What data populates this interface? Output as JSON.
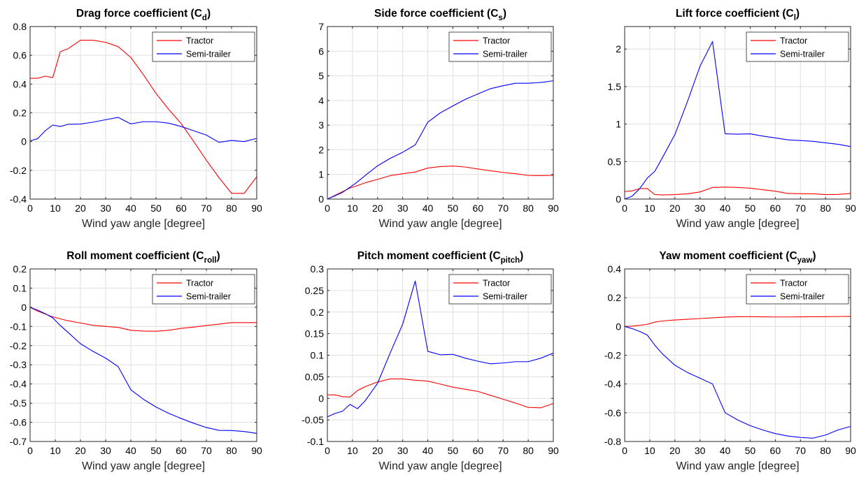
{
  "chart_data": [
    {
      "type": "line",
      "title": "Drag force coefficient (C",
      "title_sub": "d",
      "title_close": ")",
      "xlabel": "Wind yaw angle [degree]",
      "ylabel": "",
      "xlim": [
        0,
        90
      ],
      "ylim": [
        -0.4,
        0.8
      ],
      "xticks": [
        0,
        10,
        20,
        30,
        40,
        50,
        60,
        70,
        80,
        90
      ],
      "yticks": [
        -0.4,
        -0.2,
        0,
        0.2,
        0.4,
        0.6,
        0.8
      ],
      "ytick_labels": [
        "-0.4",
        "-0.2",
        "0",
        "0.2",
        "0.4",
        "0.6",
        "0.8"
      ],
      "grid": true,
      "legend": "top-right",
      "series": [
        {
          "name": "Tractor",
          "color": "#ff0000",
          "x": [
            0,
            3,
            6,
            9,
            12,
            15,
            20,
            25,
            30,
            35,
            40,
            45,
            50,
            55,
            60,
            65,
            70,
            75,
            80,
            85,
            90
          ],
          "y": [
            0.44,
            0.44,
            0.455,
            0.445,
            0.625,
            0.645,
            0.705,
            0.705,
            0.69,
            0.66,
            0.585,
            0.465,
            0.335,
            0.225,
            0.125,
            0.0,
            -0.13,
            -0.25,
            -0.36,
            -0.36,
            -0.245
          ]
        },
        {
          "name": "Semi-trailer",
          "color": "#0000ff",
          "x": [
            0,
            3,
            6,
            9,
            12,
            15,
            20,
            25,
            30,
            35,
            40,
            45,
            50,
            55,
            60,
            65,
            70,
            75,
            80,
            85,
            90
          ],
          "y": [
            0.005,
            0.02,
            0.075,
            0.115,
            0.105,
            0.12,
            0.122,
            0.135,
            0.152,
            0.168,
            0.123,
            0.138,
            0.138,
            0.128,
            0.105,
            0.075,
            0.045,
            -0.005,
            0.008,
            0.0,
            0.022
          ]
        }
      ]
    },
    {
      "type": "line",
      "title": "Side force coefficient (C",
      "title_sub": "s",
      "title_close": ")",
      "xlabel": "Wind yaw angle [degree]",
      "ylabel": "",
      "xlim": [
        0,
        90
      ],
      "ylim": [
        0,
        7
      ],
      "xticks": [
        0,
        10,
        20,
        30,
        40,
        50,
        60,
        70,
        80,
        90
      ],
      "yticks": [
        0,
        1,
        2,
        3,
        4,
        5,
        6,
        7
      ],
      "ytick_labels": [
        "0",
        "1",
        "2",
        "3",
        "4",
        "5",
        "6",
        "7"
      ],
      "grid": true,
      "legend": "top-right",
      "series": [
        {
          "name": "Tractor",
          "color": "#ff0000",
          "x": [
            0,
            3,
            6,
            9,
            12,
            15,
            20,
            25,
            30,
            35,
            40,
            45,
            50,
            55,
            60,
            65,
            70,
            75,
            80,
            85,
            90
          ],
          "y": [
            0.0,
            0.15,
            0.3,
            0.45,
            0.55,
            0.66,
            0.8,
            0.95,
            1.03,
            1.1,
            1.26,
            1.32,
            1.34,
            1.3,
            1.22,
            1.15,
            1.08,
            1.03,
            0.96,
            0.95,
            0.96
          ]
        },
        {
          "name": "Semi-trailer",
          "color": "#0000ff",
          "x": [
            0,
            3,
            6,
            9,
            12,
            15,
            20,
            25,
            30,
            35,
            40,
            45,
            50,
            55,
            60,
            65,
            70,
            75,
            80,
            85,
            90
          ],
          "y": [
            0.0,
            0.13,
            0.27,
            0.48,
            0.7,
            0.95,
            1.35,
            1.65,
            1.9,
            2.2,
            3.12,
            3.5,
            3.78,
            4.05,
            4.27,
            4.48,
            4.6,
            4.7,
            4.7,
            4.73,
            4.8
          ]
        }
      ]
    },
    {
      "type": "line",
      "title": "Lift force coefficient (C",
      "title_sub": "l",
      "title_close": ")",
      "xlabel": "Wind yaw angle [degree]",
      "ylabel": "",
      "xlim": [
        0,
        90
      ],
      "ylim": [
        0,
        2.3
      ],
      "xticks": [
        0,
        10,
        20,
        30,
        40,
        50,
        60,
        70,
        80,
        90
      ],
      "yticks": [
        0,
        0.5,
        1,
        1.5,
        2
      ],
      "ytick_labels": [
        "0",
        "0.5",
        "1",
        "1.5",
        "2"
      ],
      "grid": true,
      "legend": "top-right",
      "series": [
        {
          "name": "Tractor",
          "color": "#ff0000",
          "x": [
            0,
            3,
            6,
            9,
            12,
            15,
            20,
            25,
            30,
            35,
            40,
            45,
            50,
            55,
            60,
            65,
            70,
            75,
            80,
            85,
            90
          ],
          "y": [
            0.1,
            0.11,
            0.14,
            0.14,
            0.06,
            0.055,
            0.06,
            0.07,
            0.095,
            0.155,
            0.16,
            0.155,
            0.145,
            0.125,
            0.105,
            0.075,
            0.072,
            0.07,
            0.06,
            0.062,
            0.075
          ]
        },
        {
          "name": "Semi-trailer",
          "color": "#0000ff",
          "x": [
            0,
            3,
            6,
            9,
            12,
            15,
            20,
            25,
            30,
            35,
            40,
            45,
            50,
            55,
            60,
            65,
            70,
            75,
            80,
            85,
            90
          ],
          "y": [
            0.0,
            0.04,
            0.14,
            0.28,
            0.37,
            0.55,
            0.86,
            1.3,
            1.77,
            2.1,
            0.87,
            0.865,
            0.87,
            0.84,
            0.815,
            0.79,
            0.78,
            0.77,
            0.75,
            0.73,
            0.7
          ]
        }
      ]
    },
    {
      "type": "line",
      "title": "Roll moment coefficient (C",
      "title_sub": "roll",
      "title_close": ")",
      "xlabel": "Wind yaw angle [degree]",
      "ylabel": "",
      "xlim": [
        0,
        90
      ],
      "ylim": [
        -0.7,
        0.2
      ],
      "xticks": [
        0,
        10,
        20,
        30,
        40,
        50,
        60,
        70,
        80,
        90
      ],
      "yticks": [
        -0.7,
        -0.6,
        -0.5,
        -0.4,
        -0.3,
        -0.2,
        -0.1,
        0,
        0.1,
        0.2
      ],
      "ytick_labels": [
        "-0.7",
        "-0.6",
        "-0.5",
        "-0.4",
        "-0.3",
        "-0.2",
        "-0.1",
        "0",
        "0.1",
        "0.2"
      ],
      "grid": true,
      "legend": "top-right",
      "series": [
        {
          "name": "Tractor",
          "color": "#ff0000",
          "x": [
            0,
            3,
            6,
            9,
            12,
            15,
            20,
            25,
            30,
            35,
            40,
            45,
            50,
            55,
            60,
            65,
            70,
            75,
            80,
            85,
            90
          ],
          "y": [
            0.0,
            -0.02,
            -0.035,
            -0.05,
            -0.06,
            -0.07,
            -0.082,
            -0.094,
            -0.1,
            -0.105,
            -0.12,
            -0.124,
            -0.125,
            -0.12,
            -0.11,
            -0.103,
            -0.095,
            -0.088,
            -0.08,
            -0.08,
            -0.08
          ]
        },
        {
          "name": "Semi-trailer",
          "color": "#0000ff",
          "x": [
            0,
            3,
            6,
            9,
            12,
            15,
            20,
            25,
            30,
            35,
            40,
            45,
            50,
            55,
            60,
            65,
            70,
            75,
            80,
            85,
            90
          ],
          "y": [
            0.0,
            -0.015,
            -0.033,
            -0.055,
            -0.095,
            -0.13,
            -0.19,
            -0.23,
            -0.265,
            -0.31,
            -0.43,
            -0.48,
            -0.52,
            -0.553,
            -0.58,
            -0.605,
            -0.627,
            -0.642,
            -0.643,
            -0.648,
            -0.658
          ]
        }
      ]
    },
    {
      "type": "line",
      "title": "Pitch moment coefficient (C",
      "title_sub": "pitch",
      "title_close": ")",
      "xlabel": "Wind yaw angle [degree]",
      "ylabel": "",
      "xlim": [
        0,
        90
      ],
      "ylim": [
        -0.1,
        0.3
      ],
      "xticks": [
        0,
        10,
        20,
        30,
        40,
        50,
        60,
        70,
        80,
        90
      ],
      "yticks": [
        -0.1,
        -0.05,
        0,
        0.05,
        0.1,
        0.15,
        0.2,
        0.25,
        0.3
      ],
      "ytick_labels": [
        "-0.1",
        "-0.05",
        "0",
        "0.05",
        "0.1",
        "0.15",
        "0.2",
        "0.25",
        "0.3"
      ],
      "grid": true,
      "legend": "top-right",
      "series": [
        {
          "name": "Tractor",
          "color": "#ff0000",
          "x": [
            0,
            3,
            6,
            9,
            12,
            15,
            20,
            25,
            30,
            35,
            40,
            45,
            50,
            55,
            60,
            65,
            70,
            75,
            80,
            85,
            90
          ],
          "y": [
            0.008,
            0.008,
            0.004,
            0.003,
            0.018,
            0.027,
            0.038,
            0.045,
            0.045,
            0.042,
            0.04,
            0.033,
            0.026,
            0.021,
            0.016,
            0.007,
            -0.002,
            -0.011,
            -0.021,
            -0.022,
            -0.012
          ]
        },
        {
          "name": "Semi-trailer",
          "color": "#0000ff",
          "x": [
            0,
            3,
            6,
            9,
            12,
            15,
            20,
            25,
            30,
            35,
            40,
            45,
            50,
            55,
            60,
            65,
            70,
            75,
            80,
            85,
            90
          ],
          "y": [
            -0.043,
            -0.035,
            -0.03,
            -0.014,
            -0.024,
            -0.006,
            0.035,
            0.105,
            0.172,
            0.272,
            0.109,
            0.101,
            0.102,
            0.093,
            0.086,
            0.08,
            0.082,
            0.085,
            0.085,
            0.093,
            0.105
          ]
        }
      ]
    },
    {
      "type": "line",
      "title": "Yaw moment coefficient (C",
      "title_sub": "yaw",
      "title_close": ")",
      "xlabel": "Wind yaw angle [degree]",
      "ylabel": "",
      "xlim": [
        0,
        90
      ],
      "ylim": [
        -0.8,
        0.4
      ],
      "xticks": [
        0,
        10,
        20,
        30,
        40,
        50,
        60,
        70,
        80,
        90
      ],
      "yticks": [
        -0.8,
        -0.6,
        -0.4,
        -0.2,
        0,
        0.2,
        0.4
      ],
      "ytick_labels": [
        "-0.8",
        "-0.6",
        "-0.4",
        "-0.2",
        "0",
        "0.2",
        "0.4"
      ],
      "grid": true,
      "legend": "top-right",
      "series": [
        {
          "name": "Tractor",
          "color": "#ff0000",
          "x": [
            0,
            3,
            6,
            9,
            12,
            15,
            20,
            25,
            30,
            35,
            40,
            45,
            50,
            55,
            60,
            65,
            70,
            75,
            80,
            85,
            90
          ],
          "y": [
            0.0,
            0.002,
            0.008,
            0.015,
            0.03,
            0.038,
            0.045,
            0.05,
            0.055,
            0.06,
            0.065,
            0.068,
            0.068,
            0.067,
            0.066,
            0.066,
            0.067,
            0.068,
            0.068,
            0.069,
            0.07
          ]
        },
        {
          "name": "Semi-trailer",
          "color": "#0000ff",
          "x": [
            0,
            3,
            6,
            9,
            12,
            15,
            20,
            25,
            30,
            35,
            40,
            45,
            50,
            55,
            60,
            65,
            70,
            75,
            80,
            85,
            90
          ],
          "y": [
            0.0,
            -0.015,
            -0.035,
            -0.06,
            -0.13,
            -0.19,
            -0.27,
            -0.32,
            -0.36,
            -0.4,
            -0.6,
            -0.65,
            -0.69,
            -0.72,
            -0.745,
            -0.762,
            -0.772,
            -0.777,
            -0.755,
            -0.72,
            -0.695
          ]
        }
      ]
    }
  ]
}
